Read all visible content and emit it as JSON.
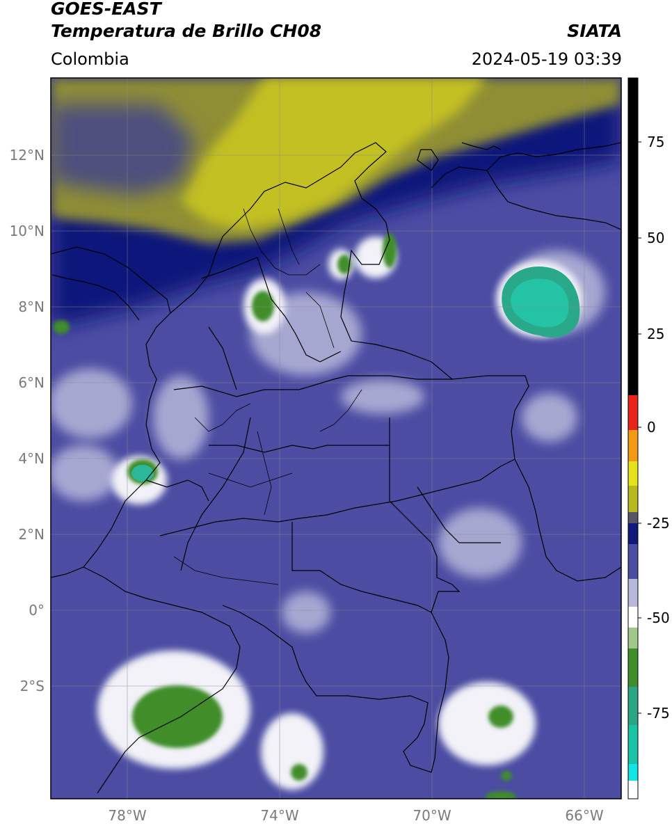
{
  "header": {
    "line1": "GOES-EAST",
    "line2": "Temperatura de Brillo CH08",
    "brand": "SIATA",
    "region": "Colombia",
    "datetime": "2024-05-19 03:39"
  },
  "map": {
    "lat_ticks": [
      "12°N",
      "10°N",
      "8°N",
      "6°N",
      "4°N",
      "2°N",
      "0°",
      "2°S"
    ],
    "lon_ticks": [
      "78°W",
      "74°W",
      "70°W",
      "66°W"
    ],
    "lat_range": [
      -4.1,
      14.0
    ],
    "lon_range": [
      -80.0,
      -65.0
    ],
    "colorbar": {
      "ticks": [
        "75",
        "50",
        "25",
        "0",
        "-25",
        "-50",
        "-75"
      ],
      "range": [
        -95,
        90
      ],
      "colors": {
        "black": "#000000",
        "red": "#e8231a",
        "orange": "#f39a14",
        "yellow": "#e7e21e",
        "olive": "#b8b91f",
        "darkblue": "#10187a",
        "purple": "#4b4ca2",
        "lavender": "#b7b8da",
        "white": "#ffffff",
        "green": "#3f8d2b",
        "teal": "#1ac3a5",
        "cyan": "#13e4e4"
      }
    }
  }
}
